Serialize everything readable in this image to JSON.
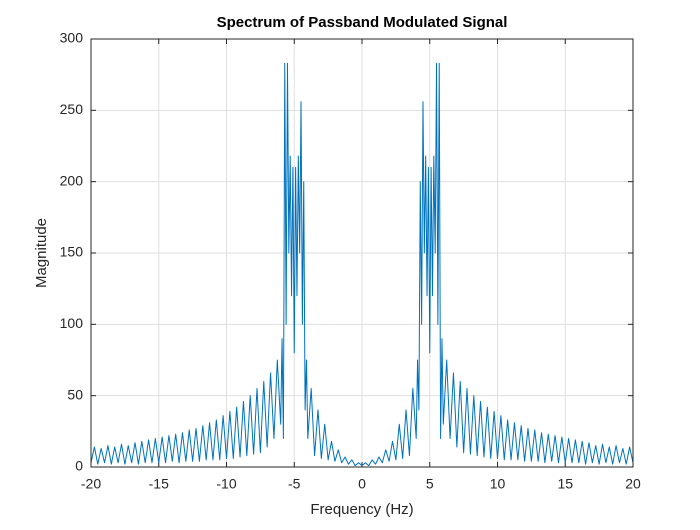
{
  "chart_data": {
    "type": "line",
    "title": "Spectrum of Passband Modulated Signal",
    "xlabel": "Frequency (Hz)",
    "ylabel": "Magnitude",
    "x": [
      -20,
      -19.75,
      -19.5,
      -19.25,
      -19,
      -18.75,
      -18.5,
      -18.25,
      -18,
      -17.75,
      -17.5,
      -17.25,
      -17,
      -16.75,
      -16.5,
      -16.25,
      -16,
      -15.75,
      -15.5,
      -15.25,
      -15,
      -14.75,
      -14.5,
      -14.25,
      -14,
      -13.75,
      -13.5,
      -13.25,
      -13,
      -12.75,
      -12.5,
      -12.25,
      -12,
      -11.75,
      -11.5,
      -11.25,
      -11,
      -10.75,
      -10.5,
      -10.25,
      -10,
      -9.75,
      -9.5,
      -9.25,
      -9,
      -8.75,
      -8.5,
      -8.25,
      -8,
      -7.75,
      -7.5,
      -7.25,
      -7,
      -6.75,
      -6.5,
      -6.25,
      -6,
      -5.9,
      -5.8,
      -5.7,
      -5.6,
      -5.5,
      -5.4,
      -5.3,
      -5.2,
      -5.1,
      -5,
      -4.9,
      -4.8,
      -4.7,
      -4.6,
      -4.5,
      -4.4,
      -4.3,
      -4.2,
      -4.1,
      -4,
      -3.75,
      -3.5,
      -3.25,
      -3,
      -2.75,
      -2.5,
      -2.25,
      -2,
      -1.75,
      -1.5,
      -1.25,
      -1,
      -0.75,
      -0.5,
      -0.25,
      0,
      0.25,
      0.5,
      0.75,
      1,
      1.25,
      1.5,
      1.75,
      2,
      2.25,
      2.5,
      2.75,
      3,
      3.25,
      3.5,
      3.75,
      4,
      4.1,
      4.2,
      4.3,
      4.4,
      4.5,
      4.6,
      4.7,
      4.8,
      4.9,
      5,
      5.1,
      5.2,
      5.3,
      5.4,
      5.5,
      5.6,
      5.7,
      5.8,
      5.9,
      6,
      6.25,
      6.5,
      6.75,
      7,
      7.25,
      7.5,
      7.75,
      8,
      8.25,
      8.5,
      8.75,
      9,
      9.25,
      9.5,
      9.75,
      10,
      10.25,
      10.5,
      10.75,
      11,
      11.25,
      11.5,
      11.75,
      12,
      12.25,
      12.5,
      12.75,
      13,
      13.25,
      13.5,
      13.75,
      14,
      14.25,
      14.5,
      14.75,
      15,
      15.25,
      15.5,
      15.75,
      16,
      16.25,
      16.5,
      16.75,
      17,
      17.25,
      17.5,
      17.75,
      18,
      18.25,
      18.5,
      18.75,
      19,
      19.25,
      19.5,
      19.75,
      20
    ],
    "values": [
      3,
      14,
      2,
      13,
      3,
      15,
      2,
      14,
      3,
      16,
      2,
      15,
      3,
      17,
      2,
      18,
      3,
      19,
      3,
      20,
      3,
      21,
      3,
      22,
      4,
      23,
      3,
      24,
      4,
      26,
      4,
      27,
      4,
      29,
      5,
      31,
      5,
      33,
      5,
      36,
      6,
      39,
      6,
      42,
      7,
      46,
      8,
      50,
      9,
      55,
      10,
      60,
      14,
      66,
      20,
      75,
      30,
      90,
      20,
      283,
      100,
      283,
      150,
      218,
      120,
      210,
      80,
      210,
      120,
      218,
      150,
      256,
      100,
      200,
      40,
      75,
      20,
      55,
      8,
      40,
      6,
      30,
      5,
      18,
      4,
      12,
      3,
      7,
      2,
      5,
      1,
      3,
      1,
      3,
      1,
      5,
      2,
      7,
      3,
      12,
      4,
      18,
      5,
      30,
      6,
      40,
      8,
      55,
      20,
      75,
      40,
      200,
      100,
      256,
      150,
      218,
      120,
      210,
      80,
      210,
      120,
      218,
      150,
      283,
      100,
      283,
      20,
      90,
      30,
      75,
      20,
      66,
      14,
      60,
      10,
      55,
      9,
      50,
      8,
      46,
      7,
      42,
      6,
      39,
      6,
      36,
      5,
      33,
      5,
      31,
      5,
      29,
      4,
      27,
      4,
      26,
      4,
      24,
      3,
      23,
      4,
      22,
      3,
      21,
      3,
      20,
      3,
      19,
      3,
      18,
      2,
      17,
      3,
      15,
      2,
      16,
      3,
      14,
      2,
      15,
      3,
      13,
      2,
      14,
      3
    ],
    "color": "#0072bd",
    "xlim": [
      -20,
      20
    ],
    "xticks": [
      -20,
      -15,
      -10,
      -5,
      0,
      5,
      10,
      15,
      20
    ],
    "ylim": [
      0,
      300
    ],
    "yticks": [
      0,
      50,
      100,
      150,
      200,
      250,
      300
    ],
    "grid": true
  }
}
